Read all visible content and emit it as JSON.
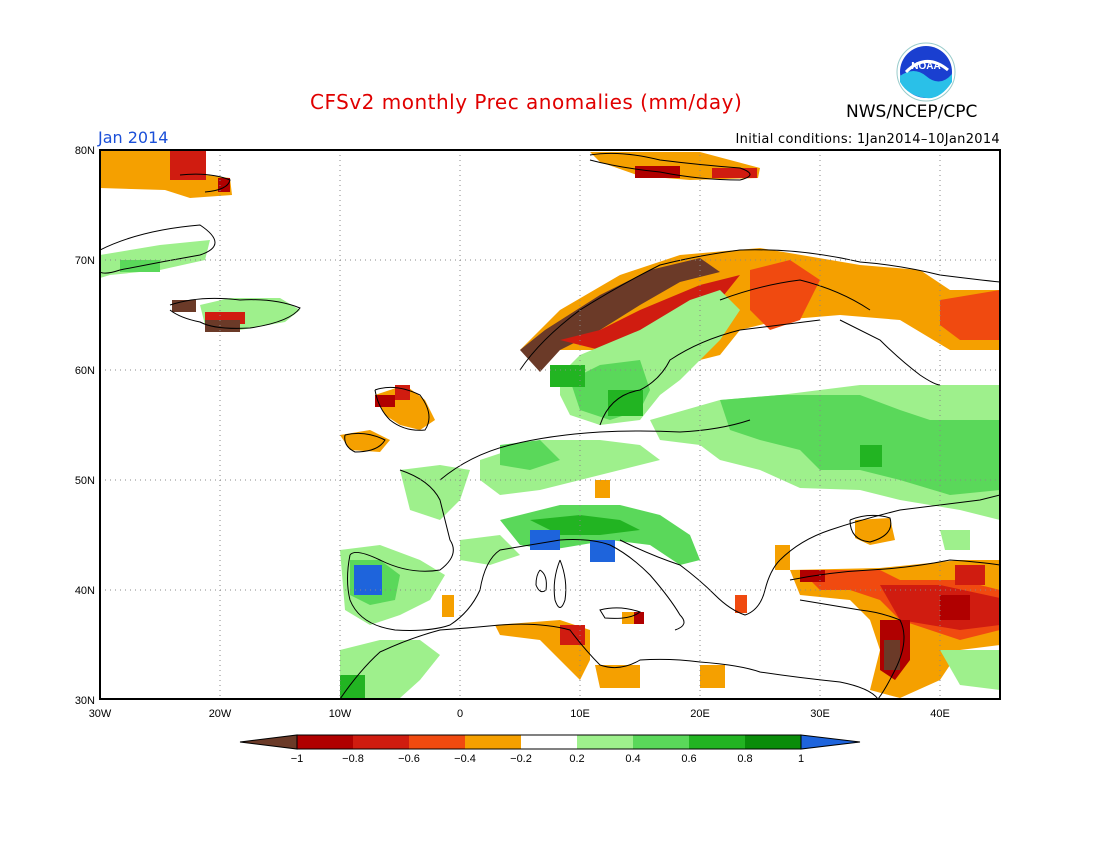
{
  "header": {
    "title": "CFSv2 monthly Prec anomalies (mm/day)",
    "agency": "NWS/NCEP/CPC",
    "logo_text": "NOAA",
    "month": "Jan 2014",
    "initial_conditions": "Initial conditions: 1Jan2014–10Jan2014"
  },
  "map": {
    "region": "Europe / North Africa",
    "lon_labels": [
      "30W",
      "20W",
      "10W",
      "0",
      "10E",
      "20E",
      "30E",
      "40E"
    ],
    "lat_labels": [
      "80N",
      "70N",
      "60N",
      "50N",
      "40N",
      "30N"
    ],
    "lon_range": [
      -30,
      45
    ],
    "lat_range": [
      30,
      80
    ],
    "grid": "dotted"
  },
  "legend": {
    "labels": [
      "−1",
      "−0.8",
      "−0.6",
      "−0.4",
      "−0.2",
      "0.2",
      "0.4",
      "0.6",
      "0.8",
      "1"
    ],
    "colors": [
      "#6b3a28",
      "#b00000",
      "#d01c10",
      "#f04a10",
      "#f5a000",
      "#ffffff",
      "#9ef08c",
      "#5ad85a",
      "#22b422",
      "#0a8c0a",
      "#1e64dc"
    ]
  }
}
